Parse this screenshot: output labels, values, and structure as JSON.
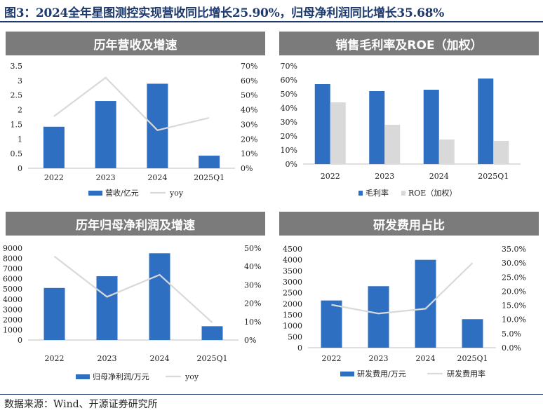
{
  "title": "图3：2024全年星图测控实现营收同比增长25.90%，归母净利润同比增长35.68%",
  "source": "数据来源：Wind、开源证券研究所",
  "colors": {
    "bar_primary": "#2f6fc2",
    "bar_secondary": "#d9d9d9",
    "line": "#d9d9d9",
    "header": "#7b7b7b"
  },
  "chart_data": [
    {
      "id": "revenue",
      "type": "bar+line",
      "title": "历年营收及增速",
      "categories": [
        "2022",
        "2023",
        "2024",
        "2025Q1"
      ],
      "series": [
        {
          "name": "营收/亿元",
          "type": "bar",
          "axis": "left",
          "values": [
            1.42,
            2.3,
            2.89,
            0.43
          ]
        },
        {
          "name": "yoy",
          "type": "line",
          "axis": "right",
          "values": [
            0.355,
            0.62,
            0.26,
            0.345
          ]
        }
      ],
      "left_axis": {
        "min": 0,
        "max": 3.5,
        "step": 0.5,
        "ticks": [
          "0",
          "0.5",
          "1",
          "1.5",
          "2",
          "2.5",
          "3",
          "3.5"
        ]
      },
      "right_axis": {
        "min": 0,
        "max": 0.7,
        "step": 0.1,
        "ticks": [
          "0%",
          "10%",
          "20%",
          "30%",
          "40%",
          "50%",
          "60%",
          "70%"
        ]
      }
    },
    {
      "id": "margin",
      "type": "bar",
      "title": "销售毛利率及ROE（加权）",
      "categories": [
        "2022",
        "2023",
        "2024",
        "2025Q1"
      ],
      "series": [
        {
          "name": "毛利率",
          "type": "bar",
          "axis": "left",
          "values": [
            0.57,
            0.52,
            0.53,
            0.61
          ]
        },
        {
          "name": "ROE（加权）",
          "type": "bar",
          "axis": "left",
          "values": [
            0.44,
            0.28,
            0.175,
            0.165
          ]
        }
      ],
      "left_axis": {
        "min": 0,
        "max": 0.7,
        "step": 0.1,
        "ticks": [
          "0%",
          "10%",
          "20%",
          "30%",
          "40%",
          "50%",
          "60%",
          "70%"
        ]
      }
    },
    {
      "id": "netprofit",
      "type": "bar+line",
      "title": "历年归母净利润及增速",
      "categories": [
        "2022",
        "2023",
        "2024",
        "2025Q1"
      ],
      "series": [
        {
          "name": "归母净利润/万元",
          "type": "bar",
          "axis": "left",
          "values": [
            5100,
            6250,
            8500,
            1350
          ]
        },
        {
          "name": "yoy",
          "type": "line",
          "axis": "right",
          "values": [
            0.455,
            0.235,
            0.355,
            0.095
          ]
        }
      ],
      "left_axis": {
        "min": 0,
        "max": 9000,
        "step": 1000,
        "ticks": [
          "0",
          "1000",
          "2000",
          "3000",
          "4000",
          "5000",
          "6000",
          "7000",
          "8000",
          "9000"
        ]
      },
      "right_axis": {
        "min": 0,
        "max": 0.5,
        "step": 0.1,
        "ticks": [
          "0%",
          "10%",
          "20%",
          "30%",
          "40%",
          "50%"
        ]
      }
    },
    {
      "id": "rd",
      "type": "bar+line",
      "title": "研发费用占比",
      "categories": [
        "2022",
        "2023",
        "2024",
        "2025Q1"
      ],
      "series": [
        {
          "name": "研发费用/万元",
          "type": "bar",
          "axis": "left",
          "values": [
            2150,
            2800,
            4000,
            1300
          ]
        },
        {
          "name": "研发费用率",
          "type": "line",
          "axis": "right",
          "values": [
            0.152,
            0.121,
            0.138,
            0.3
          ]
        }
      ],
      "left_axis": {
        "min": 0,
        "max": 4500,
        "step": 500,
        "ticks": [
          "0",
          "500",
          "1000",
          "1500",
          "2000",
          "2500",
          "3000",
          "3500",
          "4000",
          "4500"
        ]
      },
      "right_axis": {
        "min": 0,
        "max": 0.35,
        "step": 0.05,
        "ticks": [
          "0.0%",
          "5.0%",
          "10.0%",
          "15.0%",
          "20.0%",
          "25.0%",
          "30.0%",
          "35.0%"
        ]
      }
    }
  ]
}
